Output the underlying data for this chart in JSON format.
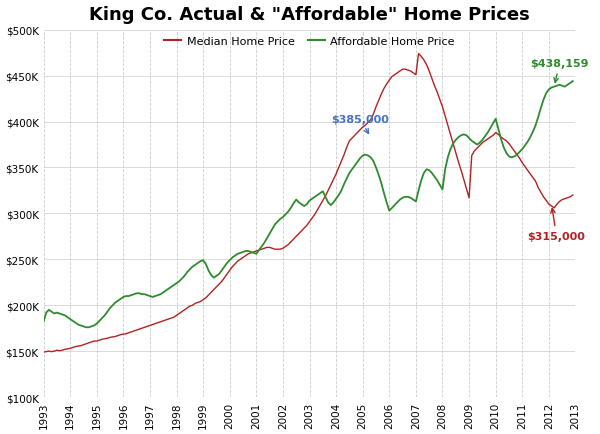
{
  "title": "King Co. Actual & \"Affordable\" Home Prices",
  "legend_labels": [
    "Median Home Price",
    "Affordable Home Price"
  ],
  "median_color": "#b22222",
  "affordable_color": "#2e8b2e",
  "annotation_color_blue": "#4472c4",
  "annotation_color_red": "#b22222",
  "annotation_color_green": "#2e8b2e",
  "ylim": [
    100000,
    500000
  ],
  "yticks": [
    100000,
    150000,
    200000,
    250000,
    300000,
    350000,
    400000,
    450000,
    500000
  ],
  "background_color": "#ffffff",
  "grid_color": "#cccccc",
  "annot1_text": "$385,000",
  "annot2_text": "$315,000",
  "annot3_text": "$438,159",
  "median_y": [
    149000,
    149500,
    150000,
    149500,
    150000,
    151000,
    150500,
    151000,
    152000,
    152500,
    153000,
    154000,
    155000,
    155500,
    156000,
    157000,
    158000,
    159000,
    160000,
    161000,
    161000,
    162000,
    163000,
    163500,
    164000,
    165000,
    165500,
    166000,
    167000,
    168000,
    168500,
    169000,
    170000,
    171000,
    172000,
    173000,
    174000,
    175000,
    176000,
    177000,
    178000,
    179000,
    180000,
    181000,
    182000,
    183000,
    184000,
    185000,
    186000,
    187000,
    189000,
    191000,
    193000,
    195000,
    197000,
    199000,
    200000,
    202000,
    203000,
    204000,
    206000,
    208000,
    211000,
    214000,
    217000,
    220000,
    223000,
    226000,
    230000,
    234000,
    238000,
    242000,
    245000,
    248000,
    250000,
    252000,
    254000,
    256000,
    257000,
    258000,
    259000,
    260000,
    261000,
    262000,
    263000,
    263000,
    262000,
    261000,
    261000,
    261000,
    262000,
    264000,
    266000,
    269000,
    272000,
    275000,
    278000,
    281000,
    284000,
    287000,
    291000,
    295000,
    299000,
    304000,
    309000,
    314000,
    319000,
    325000,
    331000,
    337000,
    343000,
    350000,
    357000,
    364000,
    372000,
    379000,
    382000,
    385000,
    388000,
    391000,
    394000,
    396000,
    399000,
    402000,
    408000,
    416000,
    423000,
    430000,
    436000,
    441000,
    445000,
    449000,
    451000,
    453000,
    455000,
    457000,
    457000,
    456000,
    455000,
    453000,
    451000,
    474000,
    471000,
    467000,
    462000,
    455000,
    447000,
    439000,
    432000,
    424000,
    416000,
    406000,
    396000,
    386000,
    376000,
    366000,
    356000,
    347000,
    337000,
    327000,
    317000,
    363000,
    368000,
    371000,
    374000,
    377000,
    379000,
    381000,
    383000,
    385000,
    388000,
    386000,
    383000,
    381000,
    379000,
    376000,
    372000,
    368000,
    364000,
    360000,
    355000,
    351000,
    347000,
    343000,
    339000,
    335000,
    328000,
    323000,
    318000,
    314000,
    310000,
    308000,
    306000,
    310000,
    313000,
    315000,
    316000,
    317000,
    318000,
    320000
  ],
  "afford_y": [
    182000,
    192000,
    195000,
    193000,
    191000,
    192000,
    191000,
    190000,
    189000,
    187000,
    185000,
    183000,
    181000,
    179000,
    178000,
    177000,
    176000,
    176000,
    177000,
    178000,
    180000,
    183000,
    186000,
    189000,
    193000,
    197000,
    200000,
    203000,
    205000,
    207000,
    209000,
    210000,
    210000,
    211000,
    212000,
    213000,
    213000,
    212000,
    212000,
    211000,
    210000,
    209000,
    210000,
    211000,
    212000,
    214000,
    216000,
    218000,
    220000,
    222000,
    224000,
    226000,
    229000,
    232000,
    236000,
    239000,
    242000,
    244000,
    246000,
    248000,
    249000,
    245000,
    238000,
    233000,
    230000,
    232000,
    234000,
    238000,
    242000,
    246000,
    249000,
    252000,
    254000,
    256000,
    257000,
    258000,
    259000,
    259000,
    258000,
    257000,
    256000,
    260000,
    264000,
    268000,
    273000,
    278000,
    283000,
    288000,
    291000,
    294000,
    296000,
    299000,
    302000,
    306000,
    311000,
    315000,
    312000,
    310000,
    308000,
    310000,
    314000,
    316000,
    318000,
    320000,
    322000,
    324000,
    318000,
    312000,
    309000,
    312000,
    316000,
    320000,
    325000,
    332000,
    338000,
    344000,
    348000,
    352000,
    356000,
    360000,
    363000,
    364000,
    363000,
    361000,
    357000,
    350000,
    342000,
    333000,
    322000,
    312000,
    303000,
    306000,
    309000,
    312000,
    315000,
    317000,
    318000,
    318000,
    317000,
    315000,
    313000,
    325000,
    336000,
    344000,
    348000,
    347000,
    344000,
    340000,
    336000,
    331000,
    326000,
    348000,
    361000,
    370000,
    376000,
    380000,
    383000,
    385000,
    386000,
    385000,
    382000,
    379000,
    377000,
    375000,
    377000,
    380000,
    384000,
    388000,
    393000,
    398000,
    403000,
    392000,
    381000,
    372000,
    366000,
    362000,
    361000,
    362000,
    364000,
    367000,
    370000,
    374000,
    378000,
    383000,
    389000,
    396000,
    405000,
    415000,
    424000,
    431000,
    435000,
    437000,
    438000,
    439000,
    440000,
    439000,
    438000,
    440000,
    442000,
    444000
  ]
}
